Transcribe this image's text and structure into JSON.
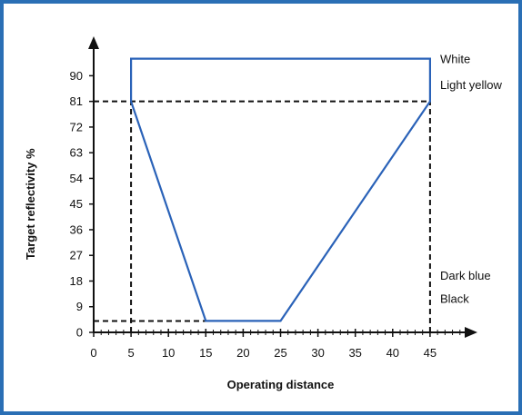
{
  "chart_data": {
    "type": "line",
    "xlabel": "Operating distance",
    "ylabel": "Target reflectivity  %",
    "x_ticks": [
      0,
      5,
      10,
      15,
      20,
      25,
      30,
      35,
      40,
      45
    ],
    "y_ticks": [
      0,
      9,
      18,
      27,
      36,
      45,
      54,
      63,
      72,
      81,
      90
    ],
    "xlim": [
      0,
      50
    ],
    "ylim": [
      0,
      100
    ],
    "grid": false,
    "series": [
      {
        "color": "#2a62b8",
        "x": [
          5,
          5,
          45,
          45,
          25,
          15,
          5
        ],
        "y": [
          81,
          96,
          96,
          81,
          4,
          4,
          81
        ]
      }
    ],
    "reference_lines": [
      {
        "orientation": "horizontal",
        "y": 81,
        "x_from": 0,
        "x_to": 45,
        "style": "dashed"
      },
      {
        "orientation": "horizontal",
        "y": 4,
        "x_from": 0,
        "x_to": 15,
        "style": "dashed"
      },
      {
        "orientation": "vertical",
        "x": 5,
        "y_from": 0,
        "y_to": 81,
        "style": "dashed"
      },
      {
        "orientation": "vertical",
        "x": 45,
        "y_from": 0,
        "y_to": 81,
        "style": "dashed"
      }
    ],
    "annotations": [
      {
        "text": "White",
        "y": 96
      },
      {
        "text": "Light yellow",
        "y": 87
      },
      {
        "text": "Dark blue",
        "y": 20
      },
      {
        "text": "Black",
        "y": 12
      }
    ]
  },
  "colors": {
    "frame": "#2a6fb5",
    "series": "#2a62b8",
    "axis": "#111111"
  }
}
